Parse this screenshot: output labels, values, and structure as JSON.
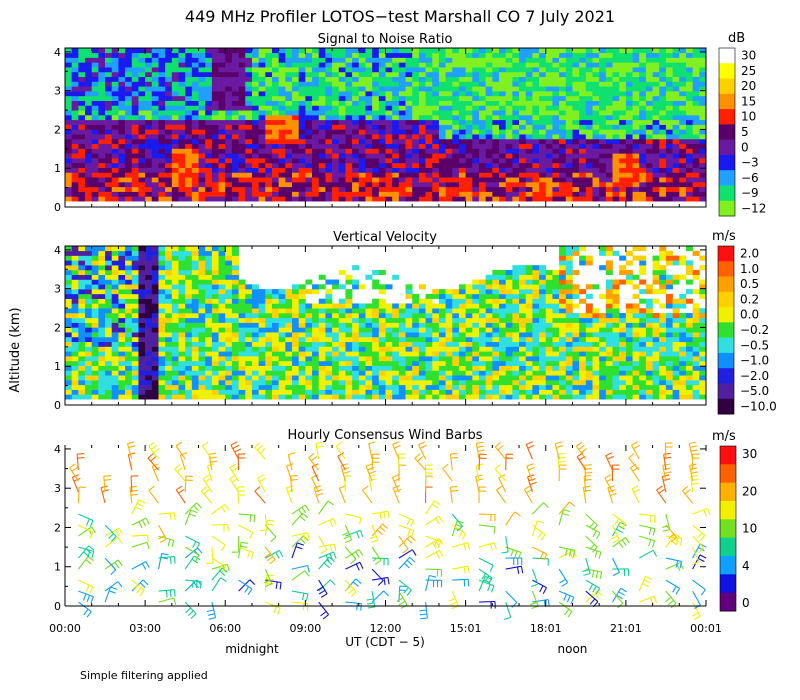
{
  "title": "449 MHz Profiler LOTOS−test Marshall CO  7 July 2021",
  "ylabel": "Altitude (km)",
  "xlabel": "UT  (CDT − 5)",
  "x_ticks": [
    "00:00",
    "03:00",
    "06:00",
    "09:00",
    "12:00",
    "15:01",
    "18:01",
    "21:01",
    "00:01"
  ],
  "y_ticks": [
    "0",
    "1",
    "2",
    "3",
    "4"
  ],
  "local_labels": [
    {
      "text": "midnight",
      "hour": 7
    },
    {
      "text": "noon",
      "hour": 19
    }
  ],
  "footer": "Simple filtering applied",
  "chart_data": [
    {
      "type": "heatmap",
      "title": "Signal to Noise Ratio",
      "xlabel": "UT (CDT - 5)",
      "ylabel": "Altitude (km)",
      "xlim": [
        0,
        24
      ],
      "ylim": [
        0,
        4.1
      ],
      "colorbar": {
        "unit": "dB",
        "labels": [
          "30",
          "25",
          "20",
          "15",
          "10",
          "5",
          "0",
          "−3",
          "−6",
          "−9",
          "−12"
        ],
        "colors": [
          "#ffffff",
          "#ffff00",
          "#ffd000",
          "#ff9000",
          "#ff2000",
          "#5a006a",
          "#6a1aa0",
          "#1a1af0",
          "#20a0ff",
          "#10e070",
          "#80f020"
        ]
      }
    },
    {
      "type": "heatmap",
      "title": "Vertical Velocity",
      "xlabel": "UT (CDT - 5)",
      "ylabel": "Altitude (km)",
      "xlim": [
        0,
        24
      ],
      "ylim": [
        0,
        4.1
      ],
      "colorbar": {
        "unit": "m/s",
        "labels": [
          "2.0",
          "1.0",
          "0.5",
          "0.2",
          "0.0",
          "−0.2",
          "−0.5",
          "−1.0",
          "−2.0",
          "−5.0",
          "−10.0"
        ],
        "colors": [
          "#ff1010",
          "#ff6000",
          "#ffa000",
          "#ffd000",
          "#f0f000",
          "#30e030",
          "#30e0e0",
          "#1090ff",
          "#2020e0",
          "#5020a0",
          "#300040"
        ]
      }
    },
    {
      "type": "barbs",
      "title": "Hourly Consensus Wind Barbs",
      "xlabel": "UT (CDT - 5)",
      "ylabel": "Altitude (km)",
      "xlim": [
        0,
        24
      ],
      "ylim": [
        0,
        4.1
      ],
      "colorbar": {
        "unit": "m/s",
        "labels": [
          "30",
          "20",
          "10",
          "4",
          "0"
        ],
        "colors": [
          "#ff1010",
          "#ff6000",
          "#ffb000",
          "#f0f000",
          "#70e020",
          "#10d090",
          "#10a0ff",
          "#1010e0",
          "#60007a"
        ]
      }
    }
  ]
}
